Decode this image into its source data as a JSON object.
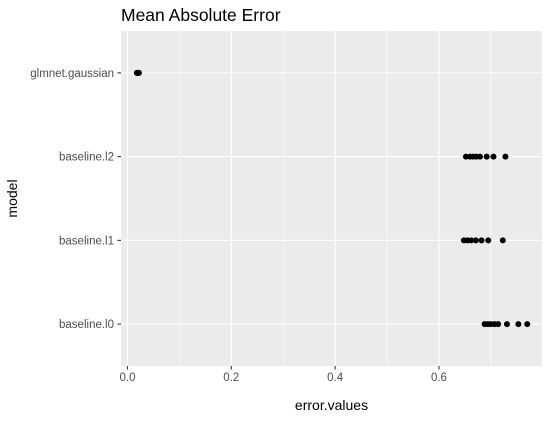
{
  "chart_data": {
    "type": "scatter",
    "title": "Mean Absolute Error",
    "xlabel": "error.values",
    "ylabel": "model",
    "xlim": [
      -0.0125,
      0.7985
    ],
    "x_ticks": [
      0.0,
      0.2,
      0.4,
      0.6
    ],
    "x_tick_labels": [
      "0.0",
      "0.2",
      "0.4",
      "0.6"
    ],
    "categories": [
      "baseline.l0",
      "baseline.l1",
      "baseline.l2",
      "glmnet.gaussian"
    ],
    "grid": true,
    "legend": "none",
    "colors": {
      "panel": "#ebebeb",
      "grid": "#ffffff",
      "point": "#000000",
      "text": "#4d4d4d",
      "title": "#000000"
    },
    "series": [
      {
        "category": "glmnet.gaussian",
        "x": [
          0.018,
          0.019,
          0.02,
          0.021,
          0.022
        ]
      },
      {
        "category": "baseline.l2",
        "x": [
          0.652,
          0.66,
          0.666,
          0.672,
          0.679,
          0.692,
          0.705,
          0.728
        ]
      },
      {
        "category": "baseline.l1",
        "x": [
          0.648,
          0.655,
          0.662,
          0.671,
          0.682,
          0.695,
          0.723
        ]
      },
      {
        "category": "baseline.l0",
        "x": [
          0.688,
          0.694,
          0.7,
          0.707,
          0.714,
          0.731,
          0.753,
          0.77
        ]
      }
    ]
  }
}
